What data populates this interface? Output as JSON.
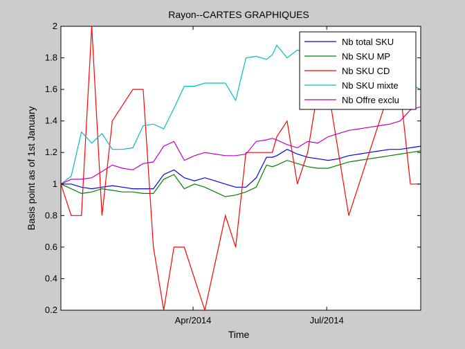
{
  "chart_data": {
    "type": "line",
    "title": "Rayon--CARTES GRAPHIQUES",
    "xlabel": "Time",
    "ylabel": "Basis point as of 1st January",
    "ylim": [
      0.2,
      2
    ],
    "yticks": [
      "0.2",
      "0.4",
      "0.6",
      "0.8",
      "1",
      "1.2",
      "1.4",
      "1.6",
      "1.8",
      "2"
    ],
    "xticks": [
      "Apr/2014",
      "Jul/2014"
    ],
    "x": [
      "2014-01-01",
      "2014-01-08",
      "2014-01-15",
      "2014-01-22",
      "2014-01-29",
      "2014-02-05",
      "2014-02-12",
      "2014-02-19",
      "2014-02-26",
      "2014-03-05",
      "2014-03-12",
      "2014-03-19",
      "2014-03-26",
      "2014-04-02",
      "2014-04-09",
      "2014-04-16",
      "2014-04-23",
      "2014-04-30",
      "2014-05-07",
      "2014-05-14",
      "2014-05-21",
      "2014-05-25",
      "2014-05-28",
      "2014-06-04",
      "2014-06-11",
      "2014-06-18",
      "2014-06-25",
      "2014-07-02",
      "2014-07-09",
      "2014-07-16",
      "2014-07-23",
      "2014-07-30",
      "2014-08-06",
      "2014-08-13",
      "2014-08-20",
      "2014-08-27",
      "2014-09-03"
    ],
    "grid": false,
    "legend_position": "top-right",
    "series": [
      {
        "name": "Nb total SKU",
        "color": "#0000ff",
        "values": [
          1.0,
          1.0,
          0.98,
          0.97,
          0.98,
          0.99,
          0.98,
          0.97,
          0.97,
          0.97,
          1.06,
          1.09,
          1.04,
          1.02,
          1.04,
          1.02,
          1.0,
          0.98,
          0.98,
          1.04,
          1.17,
          1.17,
          1.18,
          1.22,
          1.19,
          1.17,
          1.16,
          1.15,
          1.16,
          1.18,
          1.19,
          1.2,
          1.21,
          1.22,
          1.22,
          1.23,
          1.24
        ]
      },
      {
        "name": "Nb SKU MP",
        "color": "#008000",
        "values": [
          1.0,
          0.97,
          0.94,
          0.95,
          0.97,
          0.96,
          0.95,
          0.95,
          0.94,
          0.94,
          1.03,
          1.06,
          0.97,
          1.0,
          0.98,
          0.95,
          0.92,
          0.93,
          0.95,
          0.98,
          1.12,
          1.11,
          1.12,
          1.15,
          1.13,
          1.11,
          1.1,
          1.1,
          1.12,
          1.14,
          1.15,
          1.16,
          1.17,
          1.18,
          1.19,
          1.2,
          1.21
        ]
      },
      {
        "name": "Nb SKU CD",
        "color": "#ff0000",
        "values": [
          1.0,
          0.8,
          0.8,
          2.0,
          0.8,
          1.4,
          1.5,
          1.6,
          1.6,
          0.6,
          0.2,
          0.6,
          0.6,
          0.4,
          0.2,
          0.5,
          0.8,
          0.6,
          1.2,
          1.2,
          1.2,
          1.2,
          1.3,
          1.4,
          1.0,
          1.2,
          1.6,
          1.6,
          1.2,
          0.8,
          1.0,
          1.2,
          1.4,
          1.6,
          1.6,
          1.0,
          1.0
        ]
      },
      {
        "name": "Nb SKU mixte",
        "color": "#00bfbf",
        "values": [
          1.0,
          1.05,
          1.33,
          1.26,
          1.32,
          1.22,
          1.22,
          1.23,
          1.37,
          1.38,
          1.35,
          1.48,
          1.62,
          1.62,
          1.64,
          1.64,
          1.64,
          1.53,
          1.8,
          1.81,
          1.79,
          1.82,
          1.88,
          1.8,
          1.85,
          1.83,
          1.82,
          1.83,
          1.81,
          1.8,
          1.78,
          1.76,
          1.74,
          1.72,
          1.68,
          1.63,
          1.6
        ]
      },
      {
        "name": "Nb Offre exclu",
        "color": "#bf00bf",
        "values": [
          1.0,
          1.03,
          1.03,
          1.04,
          1.08,
          1.12,
          1.1,
          1.09,
          1.13,
          1.14,
          1.24,
          1.27,
          1.15,
          1.18,
          1.2,
          1.19,
          1.18,
          1.18,
          1.19,
          1.27,
          1.28,
          1.29,
          1.28,
          1.25,
          1.23,
          1.27,
          1.26,
          1.3,
          1.32,
          1.34,
          1.35,
          1.36,
          1.37,
          1.38,
          1.4,
          1.47,
          1.49
        ]
      }
    ]
  }
}
